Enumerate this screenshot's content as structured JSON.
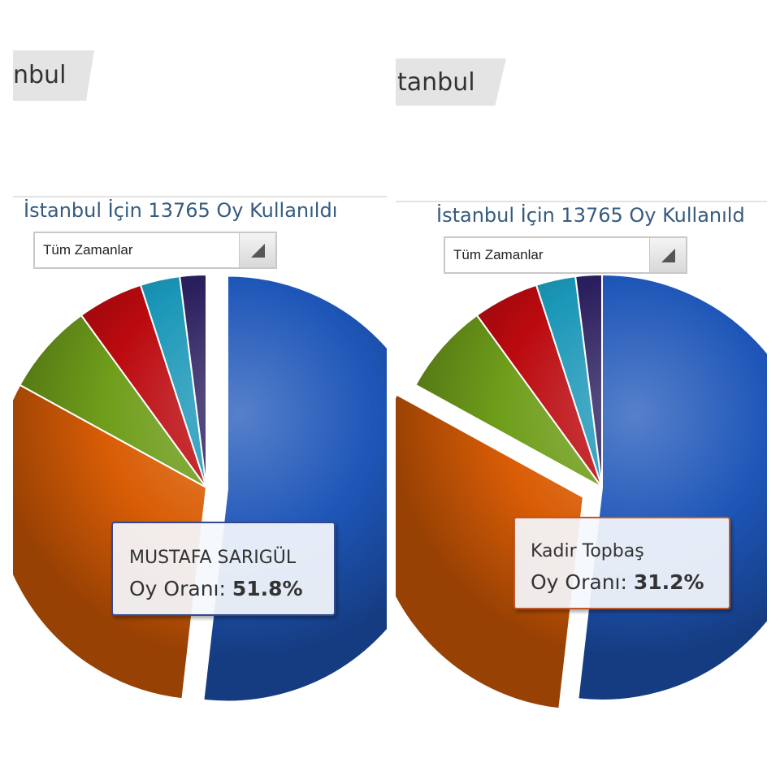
{
  "screens": [
    {
      "city_tab": "nbul",
      "heading": "İstanbul İçin 13765 Oy Kullanıldı",
      "period_select": "Tüm Zamanlar",
      "tooltip": {
        "name": "MUSTAFA SARIGÜL",
        "rate_label": "Oy Oranı:",
        "rate_value": "51.8%"
      },
      "exploded_slice": 0
    },
    {
      "city_tab": "tanbul",
      "heading": "İstanbul İçin 13765 Oy Kullanıld",
      "period_select": "Tüm Zamanlar",
      "tooltip": {
        "name": "Kadir Topbaş",
        "rate_label": "Oy Oranı:",
        "rate_value": "31.2%"
      },
      "exploded_slice": 1
    }
  ],
  "chart_data": {
    "type": "pie",
    "slices": [
      {
        "label": "MUSTAFA SARIGÜL",
        "value": 51.8,
        "color": "#1e56b8"
      },
      {
        "label": "Kadir Topbaş",
        "value": 31.2,
        "color": "#d95d06"
      },
      {
        "value": 7.0,
        "color": "#6f9e1b"
      },
      {
        "value": 5.0,
        "color": "#bb0a0f"
      },
      {
        "value": 3.0,
        "color": "#1b97b8"
      },
      {
        "value": 2.0,
        "color": "#2b1f5e"
      }
    ]
  }
}
